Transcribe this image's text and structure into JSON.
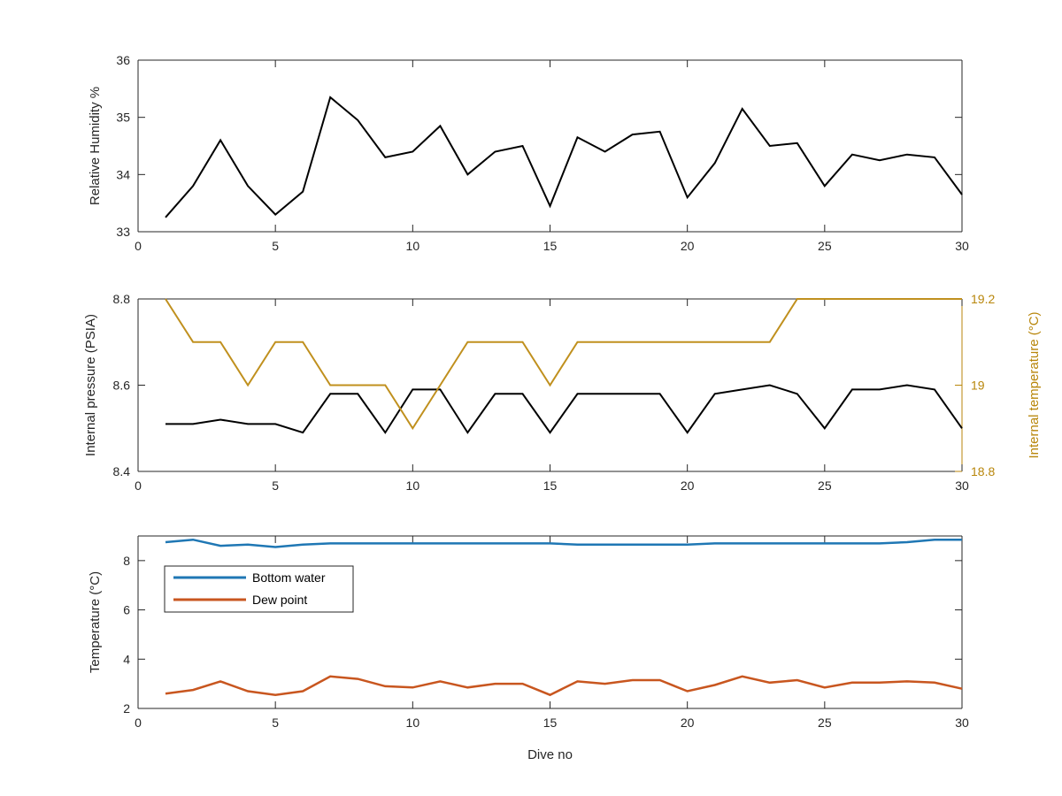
{
  "colors": {
    "axis": "#262626",
    "right_axis": "#B8860B",
    "humidity": "#000000",
    "pressure": "#000000",
    "internal_temperature": "#C0901E",
    "bottom_water": "#1F77B4",
    "dew_point": "#C8561F"
  },
  "chart_data": [
    {
      "type": "line",
      "xlabel": "",
      "ylabel": "Relative Humidity %",
      "xlim": [
        0,
        30
      ],
      "ylim": [
        33,
        36
      ],
      "xticks": [
        0,
        5,
        10,
        15,
        20,
        25,
        30
      ],
      "yticks": [
        33,
        34,
        35,
        36
      ],
      "x": [
        1,
        2,
        3,
        4,
        5,
        6,
        7,
        8,
        9,
        10,
        11,
        12,
        13,
        14,
        15,
        16,
        17,
        18,
        19,
        20,
        21,
        22,
        23,
        24,
        25,
        26,
        27,
        28,
        29,
        30
      ],
      "series": [
        {
          "values": [
            33.25,
            33.8,
            34.6,
            33.8,
            33.3,
            33.7,
            35.35,
            34.95,
            34.3,
            34.4,
            34.85,
            34.0,
            34.4,
            34.5,
            33.45,
            34.65,
            34.4,
            34.7,
            34.75,
            33.6,
            34.2,
            35.15,
            34.5,
            34.55,
            33.8,
            34.35,
            34.25,
            34.35,
            34.3,
            33.65
          ]
        }
      ]
    },
    {
      "type": "line",
      "xlabel": "",
      "ylabel": "Internal pressure (PSIA)",
      "y2label": "Internal temperature (°C)",
      "xlim": [
        0,
        30
      ],
      "ylim": [
        8.4,
        8.8
      ],
      "y2lim": [
        18.8,
        19.2
      ],
      "xticks": [
        0,
        5,
        10,
        15,
        20,
        25,
        30
      ],
      "yticks": [
        8.4,
        8.6,
        8.8
      ],
      "y2ticks": [
        18.8,
        19,
        19.2
      ],
      "ytick_labels": [
        "8.4",
        "8.6",
        "8.8"
      ],
      "y2tick_labels": [
        "18.8",
        "19",
        "19.2"
      ],
      "x": [
        1,
        2,
        3,
        4,
        5,
        6,
        7,
        8,
        9,
        10,
        11,
        12,
        13,
        14,
        15,
        16,
        17,
        18,
        19,
        20,
        21,
        22,
        23,
        24,
        25,
        26,
        27,
        28,
        29,
        30
      ],
      "series": [
        {
          "axis": "left",
          "values": [
            8.51,
            8.51,
            8.52,
            8.51,
            8.51,
            8.49,
            8.58,
            8.58,
            8.49,
            8.59,
            8.59,
            8.49,
            8.58,
            8.58,
            8.49,
            8.58,
            8.58,
            8.58,
            8.58,
            8.49,
            8.58,
            8.59,
            8.6,
            8.58,
            8.5,
            8.59,
            8.59,
            8.6,
            8.59,
            8.5
          ]
        },
        {
          "axis": "right",
          "values": [
            19.2,
            19.1,
            19.1,
            19.0,
            19.1,
            19.1,
            19.0,
            19.0,
            19.0,
            18.9,
            19.0,
            19.1,
            19.1,
            19.1,
            19.0,
            19.1,
            19.1,
            19.1,
            19.1,
            19.1,
            19.1,
            19.1,
            19.1,
            19.2,
            19.2,
            19.2,
            19.2,
            19.2,
            19.2,
            19.2
          ]
        }
      ]
    },
    {
      "type": "line",
      "xlabel": "Dive no",
      "ylabel": "Temperature (°C)",
      "xlim": [
        0,
        30
      ],
      "ylim": [
        2,
        9
      ],
      "xticks": [
        0,
        5,
        10,
        15,
        20,
        25,
        30
      ],
      "yticks": [
        2,
        4,
        6,
        8
      ],
      "legend": "top-left",
      "x": [
        1,
        2,
        3,
        4,
        5,
        6,
        7,
        8,
        9,
        10,
        11,
        12,
        13,
        14,
        15,
        16,
        17,
        18,
        19,
        20,
        21,
        22,
        23,
        24,
        25,
        26,
        27,
        28,
        29,
        30
      ],
      "series": [
        {
          "name": "Bottom water",
          "values": [
            8.75,
            8.85,
            8.6,
            8.65,
            8.55,
            8.65,
            8.7,
            8.7,
            8.7,
            8.7,
            8.7,
            8.7,
            8.7,
            8.7,
            8.7,
            8.65,
            8.65,
            8.65,
            8.65,
            8.65,
            8.7,
            8.7,
            8.7,
            8.7,
            8.7,
            8.7,
            8.7,
            8.75,
            8.85,
            8.85
          ]
        },
        {
          "name": "Dew point",
          "values": [
            2.6,
            2.75,
            3.1,
            2.7,
            2.55,
            2.7,
            3.3,
            3.2,
            2.9,
            2.85,
            3.1,
            2.85,
            3.0,
            3.0,
            2.55,
            3.1,
            3.0,
            3.15,
            3.15,
            2.7,
            2.95,
            3.3,
            3.05,
            3.15,
            2.85,
            3.05,
            3.05,
            3.1,
            3.05,
            2.8
          ]
        }
      ]
    }
  ]
}
